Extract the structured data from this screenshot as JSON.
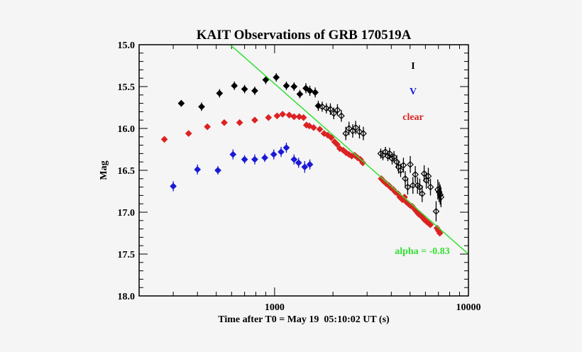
{
  "chart_data": {
    "type": "scatter",
    "title": "KAIT Observations of GRB 170519A",
    "xlabel": "Time after T0 = May 19  05:10:02 UT (s)",
    "ylabel": "Mag",
    "xscale": "log",
    "xlim": [
      200,
      10000
    ],
    "ylim": [
      18.0,
      15.0
    ],
    "yaxis_inverted": true,
    "x_tick_labels": [
      "1000",
      "10000"
    ],
    "y_tick_labels": [
      "15.0",
      "15.5",
      "16.0",
      "16.5",
      "17.0",
      "17.5",
      "18.0"
    ],
    "grid": false,
    "legend_position": "top-right",
    "series": [
      {
        "name": "I",
        "color": "#000000",
        "marker": "diamond",
        "x": [
          330,
          420,
          520,
          620,
          700,
          790,
          900,
          1020,
          1150,
          1260,
          1350,
          1450,
          1520,
          1620,
          1680,
          1760,
          1850,
          1940,
          2020,
          2110,
          2210,
          2330,
          2420,
          2530,
          2620,
          2740,
          2870,
          3530,
          3620,
          3730,
          3840,
          3920,
          4040,
          4130,
          4270,
          4360,
          4470,
          4620,
          4720,
          4860,
          5010,
          5170,
          5320,
          5460,
          5610,
          5770,
          5910,
          6060,
          6210,
          6370,
          6810,
          6950,
          7060,
          7150,
          7220
        ],
        "y": [
          15.7,
          15.74,
          15.58,
          15.49,
          15.53,
          15.55,
          15.42,
          15.39,
          15.49,
          15.5,
          15.59,
          15.52,
          15.55,
          15.57,
          15.73,
          15.74,
          15.76,
          15.77,
          15.82,
          15.78,
          15.85,
          16.06,
          16.0,
          16.03,
          15.99,
          16.04,
          16.06,
          16.3,
          16.32,
          16.28,
          16.33,
          16.3,
          16.36,
          16.34,
          16.4,
          16.46,
          16.5,
          16.44,
          16.6,
          16.7,
          16.43,
          16.68,
          16.55,
          16.68,
          16.7,
          16.78,
          16.54,
          16.62,
          16.57,
          16.7,
          16.99,
          16.73,
          16.76,
          16.79,
          16.82
        ],
        "yerr": [
          0.04,
          0.05,
          0.05,
          0.05,
          0.05,
          0.05,
          0.05,
          0.05,
          0.05,
          0.05,
          0.05,
          0.06,
          0.06,
          0.06,
          0.06,
          0.06,
          0.06,
          0.07,
          0.07,
          0.07,
          0.07,
          0.08,
          0.08,
          0.08,
          0.08,
          0.08,
          0.08,
          0.06,
          0.06,
          0.06,
          0.06,
          0.07,
          0.07,
          0.07,
          0.08,
          0.08,
          0.08,
          0.09,
          0.09,
          0.09,
          0.1,
          0.1,
          0.1,
          0.1,
          0.1,
          0.1,
          0.1,
          0.1,
          0.1,
          0.1,
          0.12,
          0.12,
          0.12,
          0.12,
          0.12
        ]
      },
      {
        "name": "V",
        "color": "#1a1ad6",
        "marker": "diamond",
        "x": [
          300,
          400,
          510,
          610,
          700,
          790,
          890,
          990,
          1080,
          1150,
          1260,
          1330,
          1430,
          1520
        ],
        "y": [
          16.69,
          16.49,
          16.5,
          16.31,
          16.37,
          16.37,
          16.35,
          16.31,
          16.28,
          16.23,
          16.37,
          16.41,
          16.46,
          16.43
        ],
        "yerr": [
          0.06,
          0.06,
          0.05,
          0.06,
          0.05,
          0.06,
          0.05,
          0.06,
          0.06,
          0.06,
          0.06,
          0.06,
          0.07,
          0.06
        ]
      },
      {
        "name": "clear",
        "color": "#dc2222",
        "marker": "diamond",
        "x": [
          270,
          360,
          450,
          550,
          660,
          790,
          930,
          1030,
          1100,
          1190,
          1260,
          1340,
          1410,
          1460,
          1510,
          1590,
          1710,
          1800,
          1880,
          1960,
          2040,
          2100,
          2170,
          2260,
          2340,
          2420,
          2500,
          2590,
          2680,
          2770,
          2850,
          3550,
          3650,
          3770,
          3880,
          3990,
          4100,
          4200,
          4330,
          4430,
          4560,
          4680,
          4790,
          4900,
          5010,
          5130,
          5260,
          5390,
          5520,
          5660,
          5790,
          5930,
          6070,
          6210,
          6360,
          6880,
          7000,
          7120
        ],
        "y": [
          16.13,
          16.06,
          15.98,
          15.93,
          15.93,
          15.9,
          15.87,
          15.85,
          15.83,
          15.84,
          15.86,
          15.86,
          15.87,
          15.96,
          15.97,
          15.99,
          16.01,
          16.06,
          16.08,
          16.11,
          16.16,
          16.19,
          16.24,
          16.26,
          16.29,
          16.31,
          16.33,
          16.32,
          16.35,
          16.37,
          16.41,
          16.6,
          16.63,
          16.66,
          16.68,
          16.71,
          16.73,
          16.76,
          16.78,
          16.82,
          16.85,
          16.82,
          16.88,
          16.9,
          16.92,
          16.93,
          16.96,
          16.99,
          17.02,
          17.04,
          17.06,
          17.09,
          17.11,
          17.13,
          17.15,
          17.19,
          17.22,
          17.25
        ],
        "yerr": []
      },
      {
        "name": "alpha = -0.83",
        "color": "#33e033",
        "type": "line",
        "x": [
          590,
          10000
        ],
        "y": [
          15.0,
          17.5
        ]
      }
    ],
    "annotations": [
      {
        "text": "alpha = -0.83",
        "color": "#33e033"
      }
    ]
  }
}
